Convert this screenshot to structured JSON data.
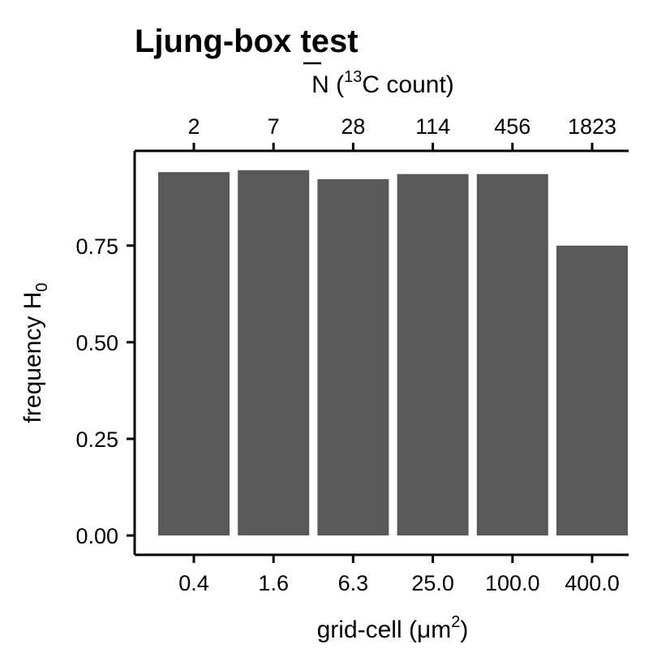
{
  "chart_data": {
    "type": "bar",
    "title": "Ljung-box test",
    "xlabel": {
      "main": "grid-cell (μm",
      "sup": "2",
      "tail": ")"
    },
    "ylabel": {
      "main": "frequency H",
      "sub": "0"
    },
    "x2label": {
      "overline": "N",
      "pre": " (",
      "sup": "13",
      "tail": "C count)"
    },
    "categories": [
      "0.4",
      "1.6",
      "6.3",
      "25.0",
      "100.0",
      "400.0"
    ],
    "secondary_categories": [
      "2",
      "7",
      "28",
      "114",
      "456",
      "1823"
    ],
    "values": [
      0.94,
      0.945,
      0.922,
      0.935,
      0.935,
      0.75
    ],
    "y_ticks": [
      "0.00",
      "0.25",
      "0.50",
      "0.75"
    ],
    "y_tick_values": [
      0,
      0.25,
      0.5,
      0.75
    ],
    "ylim": [
      -0.05,
      0.995
    ],
    "grid": false,
    "legend": "none",
    "bar_color": "#595959"
  }
}
